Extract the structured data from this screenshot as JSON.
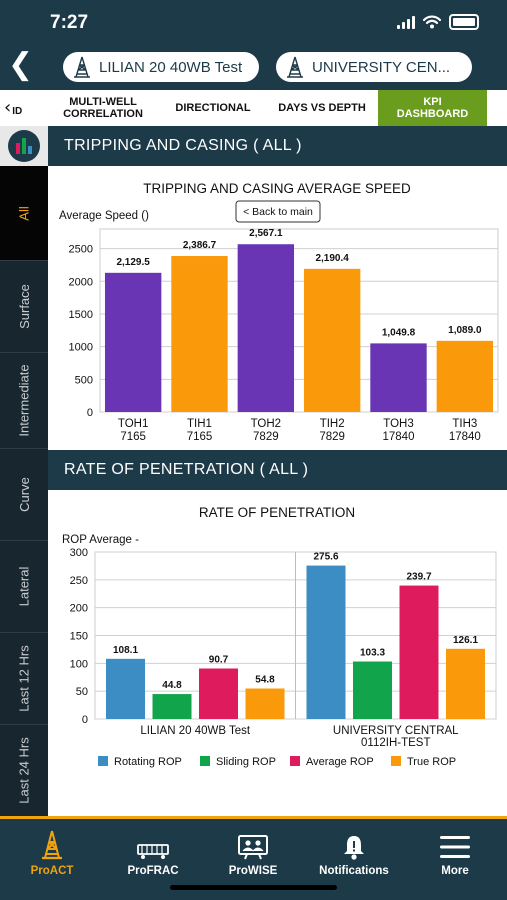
{
  "status_bar": {
    "time": "7:27"
  },
  "header": {
    "well_1": "LILIAN 20 40WB Test",
    "well_2": "UNIVERSITY CEN..."
  },
  "tabs": [
    {
      "label": "ID",
      "active": false
    },
    {
      "label": "MULTI-WELL\nCORRELATION",
      "active": false
    },
    {
      "label": "DIRECTIONAL",
      "active": false
    },
    {
      "label": "DAYS VS DEPTH",
      "active": false
    },
    {
      "label": "KPI\nDASHBOARD",
      "active": true
    }
  ],
  "sidebar": {
    "items": [
      "All",
      "Surface",
      "Intermediate",
      "Curve",
      "Lateral",
      "Last 12 Hrs",
      "Last 24 Hrs"
    ],
    "active": "All"
  },
  "section1": {
    "heading": "TRIPPING AND CASING ( ALL )",
    "back_label": "< Back to main"
  },
  "section2": {
    "heading": "RATE OF PENETRATION ( ALL )"
  },
  "chart_data": [
    {
      "type": "bar",
      "title": "TRIPPING AND CASING AVERAGE SPEED",
      "ylabel": "Average Speed ()",
      "categories": [
        "TOH1\n7165",
        "TIH1\n7165",
        "TOH2\n7829",
        "TIH2\n7829",
        "TOH3\n17840",
        "TIH3\n17840"
      ],
      "values": [
        2129.5,
        2386.7,
        2567.1,
        2190.4,
        1049.8,
        1089.0
      ],
      "value_labels": [
        "2,129.5",
        "2,386.7",
        "2,567.1",
        "2,190.4",
        "1,049.8",
        "1,089.0"
      ],
      "bar_colors": [
        "#6a35b5",
        "#fa9a0a",
        "#6a35b5",
        "#fa9a0a",
        "#6a35b5",
        "#fa9a0a"
      ],
      "yticks": [
        0,
        500,
        1000,
        1500,
        2000,
        2500
      ],
      "ylim": [
        0,
        2800
      ],
      "grid": true
    },
    {
      "type": "bar",
      "title": "RATE OF PENETRATION",
      "ylabel": "ROP Average -",
      "categories": [
        "LILIAN 20 40WB Test",
        "UNIVERSITY CENTRAL\n0112IH-TEST"
      ],
      "series": [
        {
          "name": "Rotating ROP",
          "color": "#3b8dc3",
          "values": [
            108.1,
            275.6
          ],
          "value_labels": [
            "108.1",
            "275.6"
          ]
        },
        {
          "name": "Sliding ROP",
          "color": "#11a44b",
          "values": [
            44.8,
            103.3
          ],
          "value_labels": [
            "44.8",
            "103.3"
          ]
        },
        {
          "name": "Average ROP",
          "color": "#dd1b5d",
          "values": [
            90.7,
            239.7
          ],
          "value_labels": [
            "90.7",
            "239.7"
          ]
        },
        {
          "name": "True ROP",
          "color": "#fa9a0a",
          "values": [
            54.8,
            126.1
          ],
          "value_labels": [
            "54.8",
            "126.1"
          ]
        }
      ],
      "yticks": [
        0,
        50,
        100,
        150,
        200,
        250,
        300
      ],
      "ylim": [
        0,
        300
      ],
      "grid": true,
      "legend": "bottom"
    }
  ],
  "bottom_nav": [
    {
      "label": "ProACT",
      "icon": "derrick-icon",
      "active": true
    },
    {
      "label": "ProFRAC",
      "icon": "truck-icon",
      "active": false
    },
    {
      "label": "ProWISE",
      "icon": "people-board-icon",
      "active": false
    },
    {
      "label": "Notifications",
      "icon": "bell-icon",
      "active": false
    },
    {
      "label": "More",
      "icon": "hamburger-icon",
      "active": false
    }
  ]
}
